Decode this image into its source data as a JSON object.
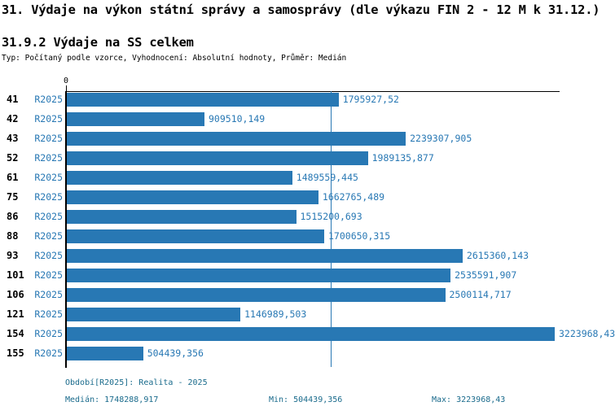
{
  "header": {
    "title": "31. Výdaje na výkon státní správy a samosprávy (dle výkazu FIN 2 - 12 M k 31.12.)",
    "subtitle": "31.9.2 Výdaje na SS celkem",
    "type_line": "Typ: Počítaný podle vzorce, Vyhodnocení: Absolutní hodnoty, Průměr: Medián"
  },
  "chart_data": {
    "type": "bar",
    "orientation": "horizontal",
    "title": "31.9.2 Výdaje na SS celkem",
    "series_label": "R2025",
    "axis_zero_label": "0",
    "categories": [
      "41",
      "42",
      "43",
      "52",
      "61",
      "75",
      "86",
      "88",
      "93",
      "101",
      "106",
      "121",
      "154",
      "155"
    ],
    "values": [
      1795927.52,
      909510.149,
      2239307.905,
      1989135.877,
      1489559.445,
      1662765.489,
      1515200.693,
      1700650.315,
      2615360.143,
      2535591.907,
      2500114.717,
      1146989.503,
      3223968.43,
      504439.356
    ],
    "value_labels": [
      "1795927,52",
      "909510,149",
      "2239307,905",
      "1989135,877",
      "1489559,445",
      "1662765,489",
      "1515200,693",
      "1700650,315",
      "2615360,143",
      "2535591,907",
      "2500114,717",
      "1146989,503",
      "3223968,43",
      "504439,356"
    ],
    "xlim": [
      0,
      3223968.43
    ],
    "median": 1748288.917,
    "min": 504439.356,
    "max": 3223968.43,
    "grid": false,
    "legend": false,
    "colors": {
      "bar": "#2878b4",
      "value_text": "#2878b4",
      "footer_text": "#1a6b8c",
      "axis": "#000000"
    }
  },
  "footer": {
    "period": "Období[R2025]: Realita - 2025",
    "median": "Medián: 1748288,917",
    "min": "Min: 504439,356",
    "max": "Max: 3223968,43"
  }
}
